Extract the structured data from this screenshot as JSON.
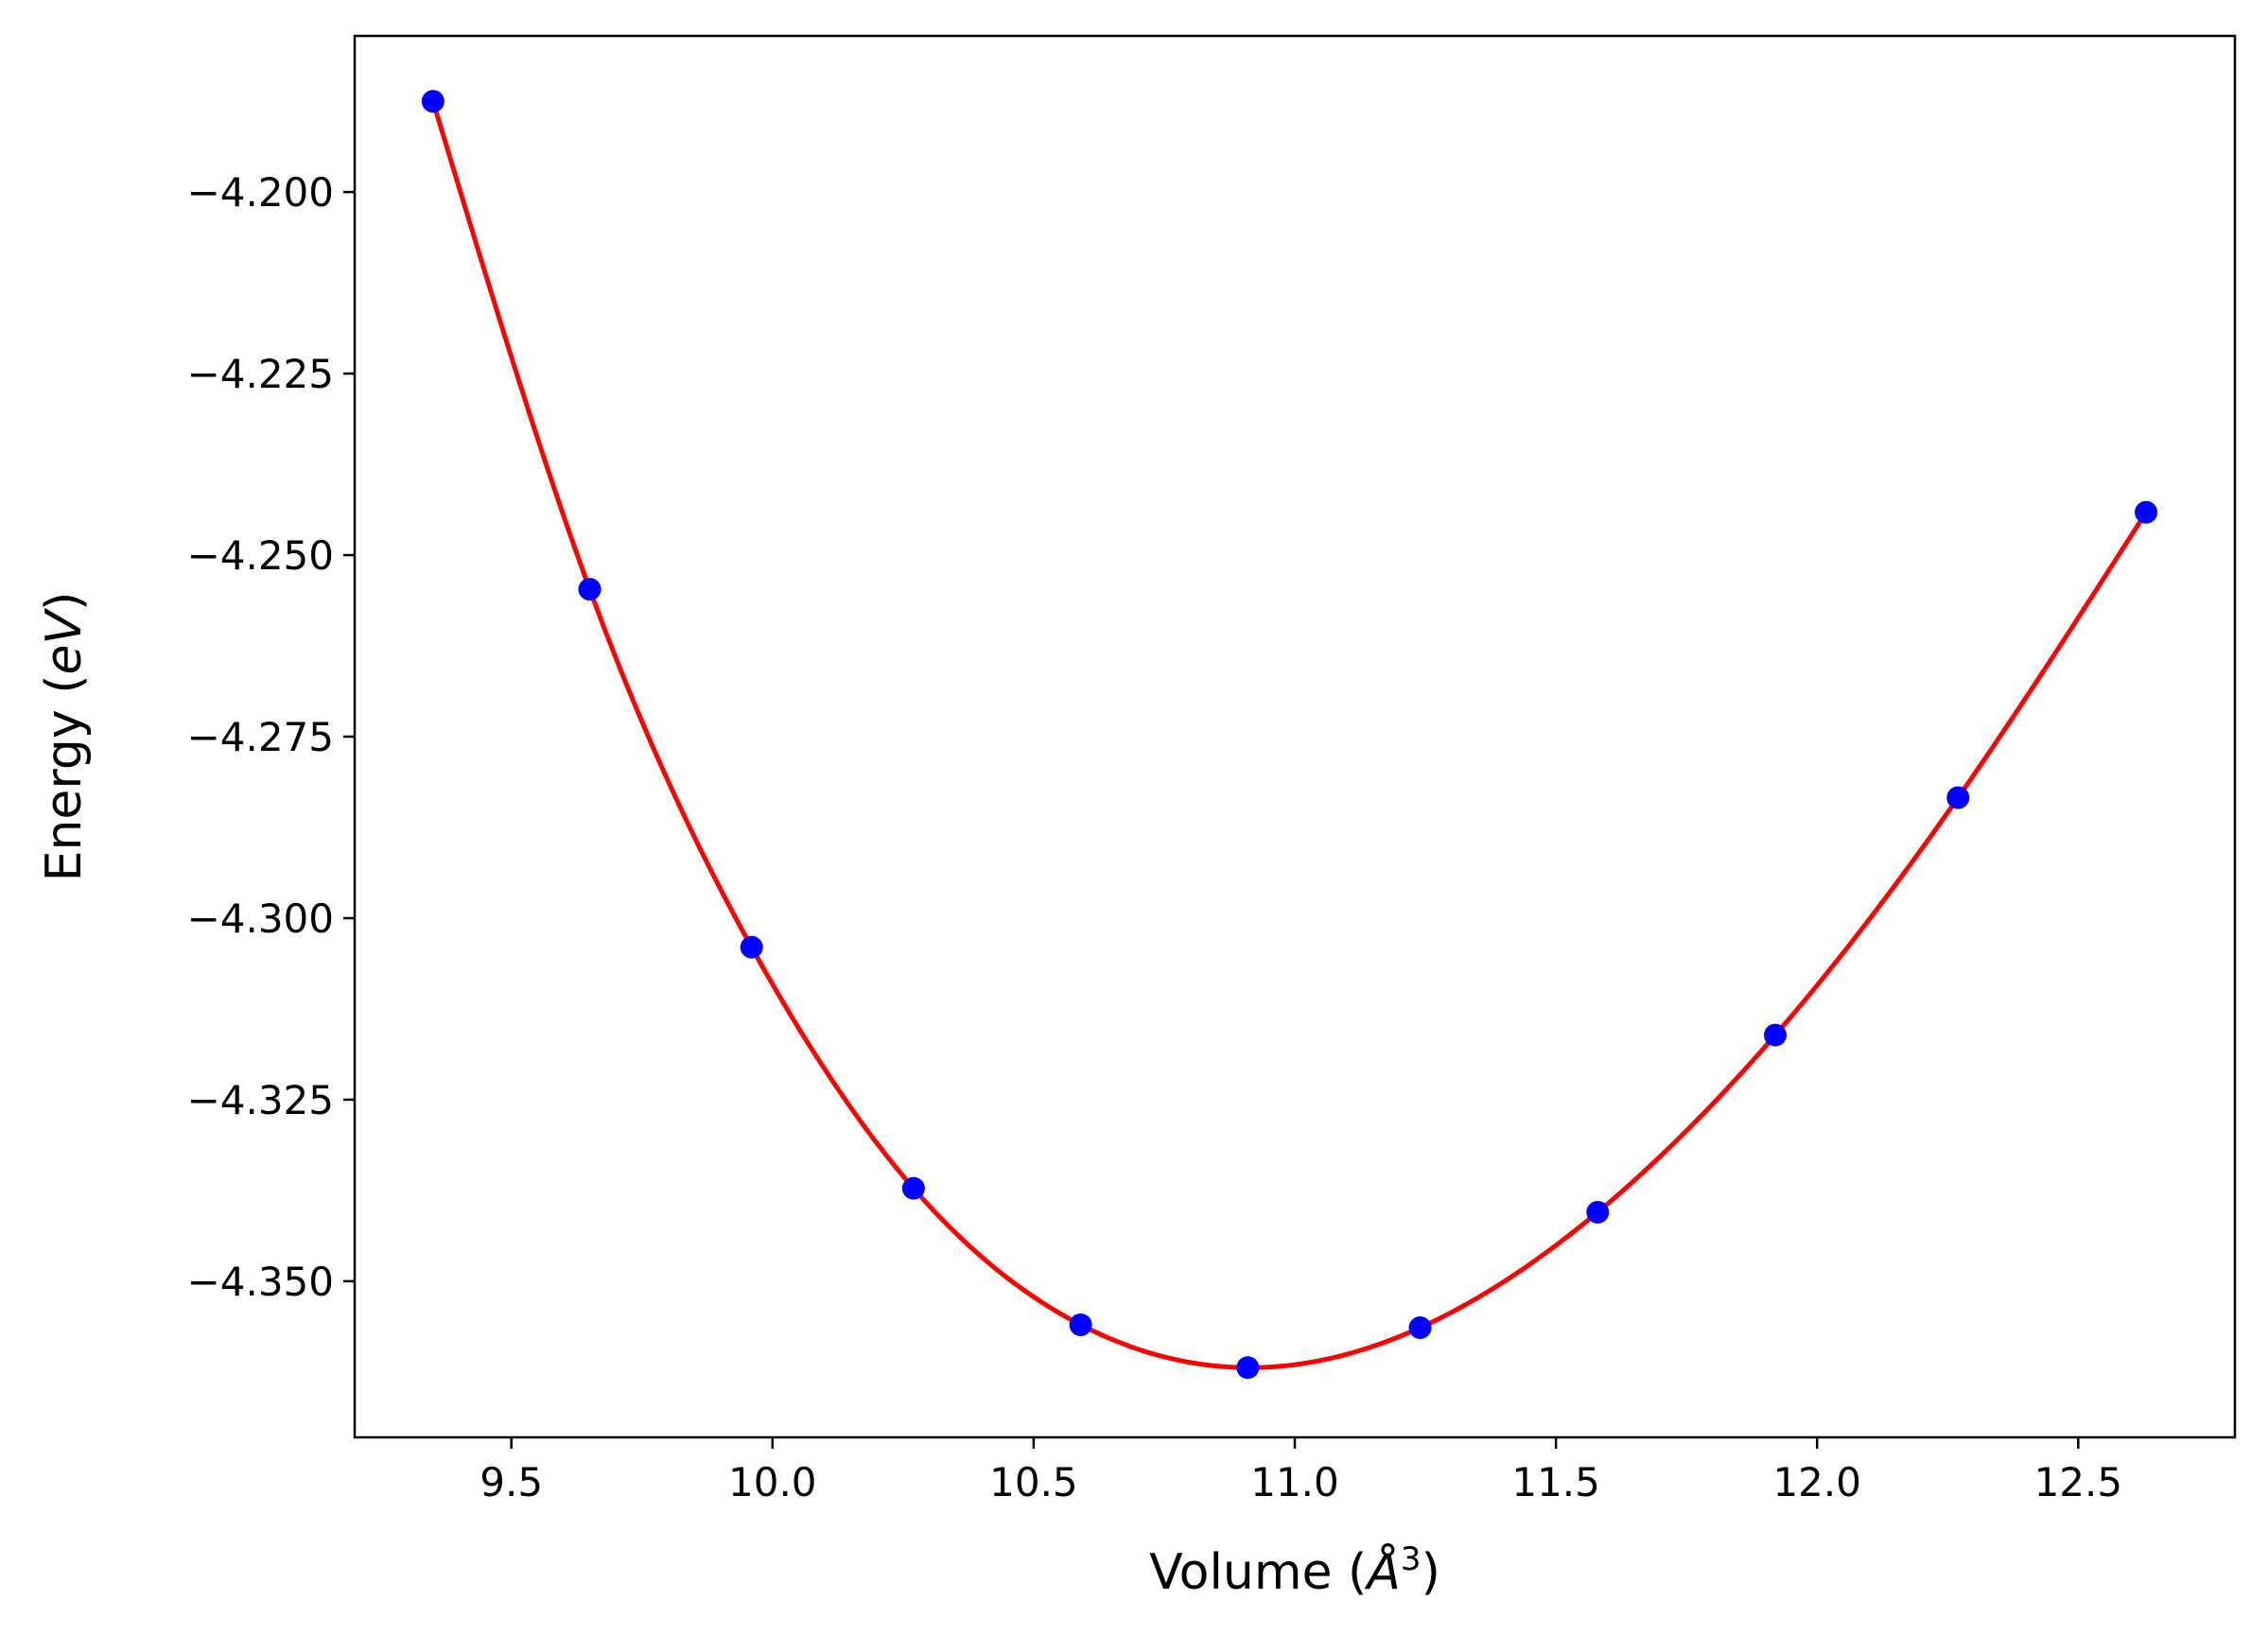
{
  "chart_data": {
    "type": "scatter",
    "title": "",
    "xlabel": {
      "prefix": "Volume (",
      "unit_symbol": "Å",
      "exponent": "3",
      "suffix": ")"
    },
    "ylabel": {
      "prefix": "Energy (",
      "unit_symbol": "eV",
      "suffix": ")"
    },
    "xlim": [
      9.2,
      12.8
    ],
    "ylim": [
      -4.3715,
      -4.1785
    ],
    "x_ticks": [
      9.5,
      10.0,
      10.5,
      11.0,
      11.5,
      12.0,
      12.5
    ],
    "x_tick_labels": [
      "9.5",
      "10.0",
      "10.5",
      "11.0",
      "11.5",
      "12.0",
      "12.5"
    ],
    "y_ticks": [
      -4.2,
      -4.225,
      -4.25,
      -4.275,
      -4.3,
      -4.325,
      -4.35
    ],
    "y_tick_labels": [
      "−4.200",
      "−4.225",
      "−4.250",
      "−4.275",
      "−4.300",
      "−4.325",
      "−4.350"
    ],
    "grid": false,
    "series": [
      {
        "type": "scatter",
        "color": "#0000ff",
        "x": [
          9.35,
          9.65,
          9.96,
          10.27,
          10.59,
          10.91,
          11.24,
          11.58,
          11.92,
          12.27,
          12.63
        ],
        "y": [
          -4.1875,
          -4.2547,
          -4.304,
          -4.3372,
          -4.356,
          -4.3619,
          -4.3564,
          -4.3405,
          -4.3161,
          -4.2834,
          -4.2441
        ]
      },
      {
        "type": "line",
        "color": "#ff0000",
        "fit": "smooth fit through data points"
      }
    ]
  }
}
